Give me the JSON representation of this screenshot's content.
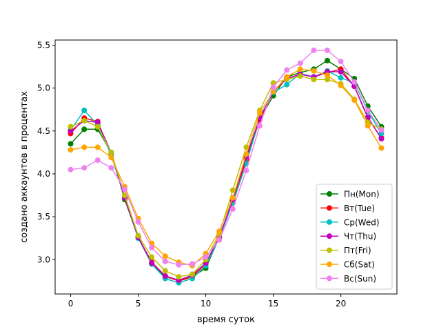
{
  "chart_data": {
    "type": "line",
    "title": "",
    "xlabel": "время суток",
    "ylabel": "создано аккаунтов в процентах",
    "xlim": [
      -1.15,
      24.15
    ],
    "ylim": [
      2.6,
      5.56
    ],
    "x_ticks": [
      0,
      5,
      10,
      15,
      20
    ],
    "y_ticks": [
      3.0,
      3.5,
      4.0,
      4.5,
      5.0,
      5.5
    ],
    "y_tick_labels": [
      "3.0",
      "3.5",
      "4.0",
      "4.5",
      "5.0",
      "5.5"
    ],
    "legend_position": "lower-right",
    "grid": false,
    "x": [
      0,
      1,
      2,
      3,
      4,
      5,
      6,
      7,
      8,
      9,
      10,
      11,
      12,
      13,
      14,
      15,
      16,
      17,
      18,
      19,
      20,
      21,
      22,
      23
    ],
    "series": [
      {
        "name": "Пн(Mon)",
        "color": "#008000",
        "values": [
          4.35,
          4.52,
          4.52,
          4.25,
          3.7,
          3.26,
          2.95,
          2.8,
          2.76,
          2.8,
          2.9,
          3.26,
          3.66,
          4.13,
          4.64,
          4.91,
          5.13,
          5.18,
          5.22,
          5.32,
          5.22,
          5.11,
          4.79,
          4.55
        ]
      },
      {
        "name": "Вт(Tue)",
        "color": "#ff0000",
        "values": [
          4.47,
          4.65,
          4.61,
          4.23,
          3.72,
          3.26,
          2.97,
          2.81,
          2.75,
          2.8,
          2.95,
          3.27,
          3.68,
          4.17,
          4.63,
          4.96,
          5.11,
          5.16,
          5.13,
          5.18,
          5.22,
          5.02,
          4.65,
          4.42
        ]
      },
      {
        "name": "Ср(Wed)",
        "color": "#00bfbf",
        "values": [
          4.51,
          4.74,
          4.57,
          4.22,
          3.72,
          3.25,
          2.95,
          2.78,
          2.73,
          2.78,
          2.93,
          3.25,
          3.66,
          4.12,
          4.66,
          4.95,
          5.04,
          5.17,
          5.13,
          5.2,
          5.12,
          5.06,
          4.73,
          4.47
        ]
      },
      {
        "name": "Чт(Thu)",
        "color": "#bf00bf",
        "values": [
          4.5,
          4.62,
          4.6,
          4.25,
          3.72,
          3.26,
          2.96,
          2.81,
          2.76,
          2.82,
          2.96,
          3.26,
          3.7,
          4.2,
          4.65,
          4.96,
          5.11,
          5.16,
          5.13,
          5.19,
          5.19,
          5.02,
          4.66,
          4.41
        ]
      },
      {
        "name": "Пт(Fri)",
        "color": "#bfbf00",
        "values": [
          4.55,
          4.62,
          4.55,
          4.25,
          3.75,
          3.28,
          3.03,
          2.87,
          2.8,
          2.83,
          3.0,
          3.3,
          3.81,
          4.31,
          4.74,
          5.06,
          5.1,
          5.14,
          5.1,
          5.1,
          5.05,
          4.87,
          4.6,
          4.52
        ]
      },
      {
        "name": "Сб(Sat)",
        "color": "#ffa500",
        "values": [
          4.28,
          4.31,
          4.31,
          4.19,
          3.85,
          3.48,
          3.19,
          3.04,
          2.97,
          2.93,
          3.07,
          3.33,
          3.72,
          4.23,
          4.71,
          4.96,
          5.13,
          5.22,
          5.2,
          5.15,
          5.03,
          4.86,
          4.56,
          4.3
        ]
      },
      {
        "name": "Вс(Sun)",
        "color": "#ee82ee",
        "values": [
          4.05,
          4.07,
          4.16,
          4.07,
          3.82,
          3.44,
          3.14,
          2.98,
          2.94,
          2.95,
          3.03,
          3.23,
          3.59,
          4.04,
          4.56,
          5.01,
          5.21,
          5.29,
          5.44,
          5.44,
          5.31,
          5.07,
          4.74,
          4.51
        ]
      }
    ]
  }
}
